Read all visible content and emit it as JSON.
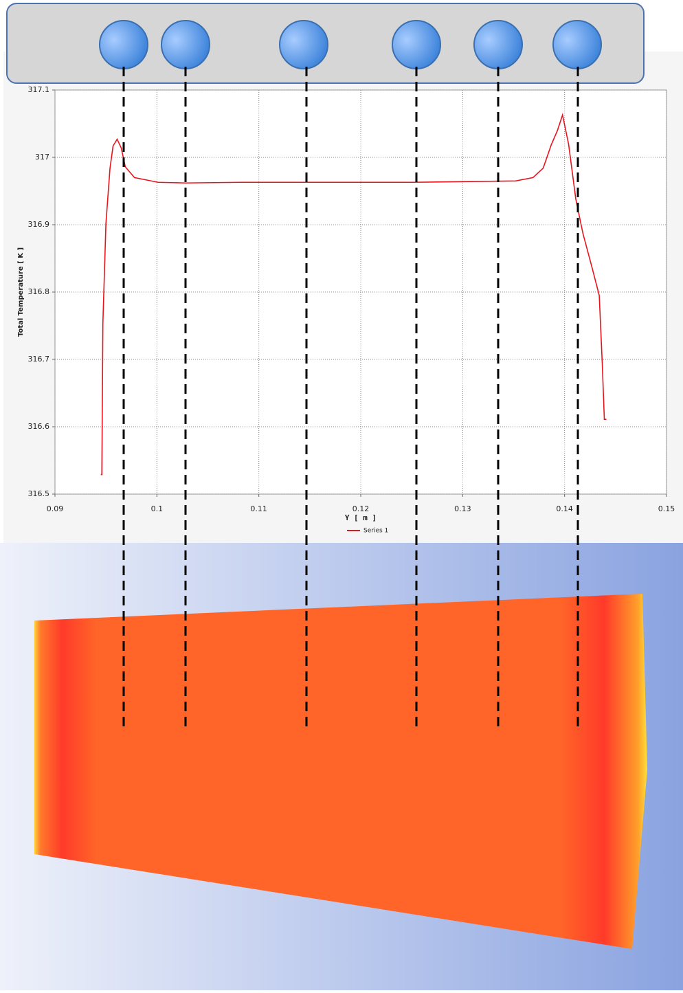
{
  "chart_data": {
    "type": "line",
    "y_label": "Total Temperature [ K ]",
    "x_label": "Y [ m ]",
    "x": [
      0.0945,
      0.0946,
      0.0947,
      0.095,
      0.0954,
      0.0957,
      0.0961,
      0.0965,
      0.0969,
      0.0978,
      0.1001,
      0.1028,
      0.1082,
      0.1251,
      0.1352,
      0.1369,
      0.1379,
      0.1387,
      0.1393,
      0.1398,
      0.1404,
      0.1411,
      0.1418,
      0.1427,
      0.1434,
      0.1437,
      0.1439,
      0.1441
    ],
    "series": [
      {
        "name": "Series 1",
        "color": "#e8141c",
        "values": [
          316.529,
          316.529,
          316.754,
          316.902,
          316.984,
          317.017,
          317.027,
          317.014,
          316.986,
          316.97,
          316.963,
          316.962,
          316.963,
          316.963,
          316.965,
          316.97,
          316.984,
          317.019,
          317.04,
          317.063,
          317.019,
          316.938,
          316.887,
          316.836,
          316.795,
          316.693,
          316.611,
          316.611
        ]
      }
    ],
    "xlim": [
      0.09,
      0.15
    ],
    "xticks": [
      0.09,
      0.1,
      0.11,
      0.12,
      0.13,
      0.14,
      0.15
    ],
    "ylim": [
      316.5,
      317.1
    ],
    "yticks": [
      316.5,
      316.6,
      316.7,
      316.8,
      316.9,
      317,
      317.1
    ],
    "grid": true
  }
}
